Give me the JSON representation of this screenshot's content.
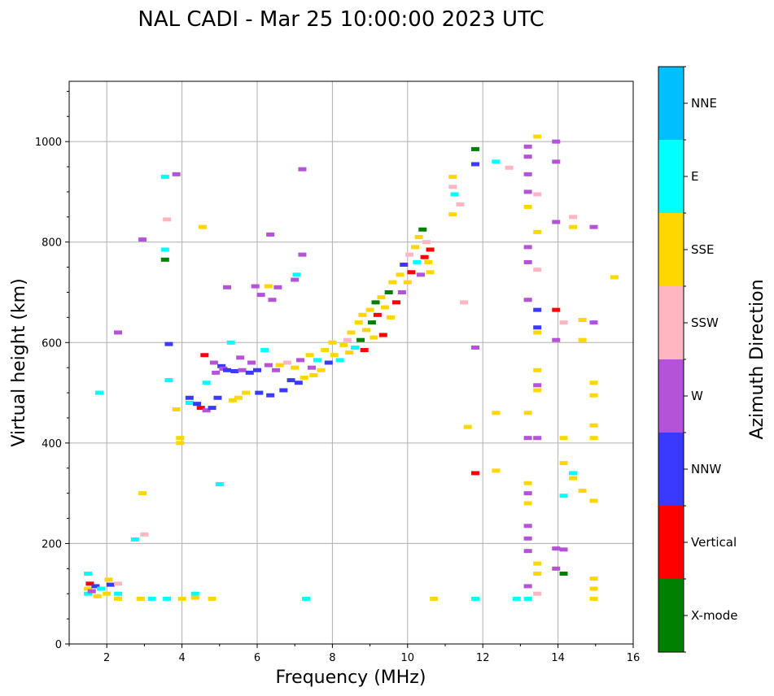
{
  "chart_data": {
    "type": "scatter",
    "title": "NAL CADI - Mar 25 10:00:00 2023 UTC",
    "xlabel": "Frequency (MHz)",
    "ylabel": "Virtual height (km)",
    "xlim": [
      1,
      16
    ],
    "ylim": [
      0,
      1120
    ],
    "xticks": [
      2,
      4,
      6,
      8,
      10,
      12,
      14,
      16
    ],
    "yticks": [
      0,
      200,
      400,
      600,
      800,
      1000
    ],
    "grid": true,
    "colorbar": {
      "title": "Azimuth Direction",
      "categories": [
        {
          "name": "X-mode",
          "color": "#008000"
        },
        {
          "name": "Vertical",
          "color": "#ff0000"
        },
        {
          "name": "NNW",
          "color": "#3a3aff"
        },
        {
          "name": "W",
          "color": "#b452d8"
        },
        {
          "name": "SSW",
          "color": "#ffb6c1"
        },
        {
          "name": "SSE",
          "color": "#ffd700"
        },
        {
          "name": "E",
          "color": "#00ffff"
        },
        {
          "name": "NNE",
          "color": "#00bfff"
        }
      ]
    },
    "points": [
      [
        1.5,
        100,
        "E"
      ],
      [
        1.5,
        110,
        "SSE"
      ],
      [
        1.55,
        120,
        "Vertical"
      ],
      [
        1.6,
        105,
        "W"
      ],
      [
        1.7,
        115,
        "NNW"
      ],
      [
        1.75,
        95,
        "SSE"
      ],
      [
        1.85,
        110,
        "E"
      ],
      [
        2.0,
        100,
        "SSE"
      ],
      [
        2.05,
        128,
        "SSE"
      ],
      [
        2.1,
        118,
        "NNW"
      ],
      [
        2.3,
        120,
        "SSW"
      ],
      [
        2.3,
        100,
        "E"
      ],
      [
        2.3,
        90,
        "SSE"
      ],
      [
        1.5,
        140,
        "E"
      ],
      [
        1.8,
        500,
        "E"
      ],
      [
        2.3,
        620,
        "W"
      ],
      [
        2.75,
        208,
        "E"
      ],
      [
        2.9,
        90,
        "SSE"
      ],
      [
        2.95,
        300,
        "SSE"
      ],
      [
        2.95,
        805,
        "W"
      ],
      [
        3.0,
        218,
        "SSW"
      ],
      [
        3.2,
        90,
        "E"
      ],
      [
        3.55,
        930,
        "E"
      ],
      [
        3.55,
        765,
        "X-mode"
      ],
      [
        3.55,
        785,
        "E"
      ],
      [
        3.6,
        845,
        "SSW"
      ],
      [
        3.6,
        90,
        "E"
      ],
      [
        3.65,
        525,
        "E"
      ],
      [
        3.65,
        597,
        "NNW"
      ],
      [
        3.85,
        935,
        "W"
      ],
      [
        3.85,
        467,
        "SSE"
      ],
      [
        3.95,
        410,
        "SSE"
      ],
      [
        3.95,
        400,
        "SSE"
      ],
      [
        4.0,
        90,
        "SSE"
      ],
      [
        4.2,
        490,
        "NNW"
      ],
      [
        4.2,
        480,
        "E"
      ],
      [
        4.35,
        100,
        "E"
      ],
      [
        4.35,
        92,
        "SSE"
      ],
      [
        4.4,
        478,
        "NNW"
      ],
      [
        4.5,
        470,
        "Vertical"
      ],
      [
        4.55,
        830,
        "SSE"
      ],
      [
        4.6,
        575,
        "Vertical"
      ],
      [
        4.65,
        520,
        "E"
      ],
      [
        4.65,
        465,
        "W"
      ],
      [
        4.8,
        90,
        "SSE"
      ],
      [
        4.8,
        470,
        "NNW"
      ],
      [
        4.85,
        560,
        "W"
      ],
      [
        4.9,
        540,
        "W"
      ],
      [
        4.95,
        490,
        "NNW"
      ],
      [
        5.0,
        318,
        "E"
      ],
      [
        5.05,
        553,
        "NNW"
      ],
      [
        5.1,
        548,
        "W"
      ],
      [
        5.2,
        710,
        "W"
      ],
      [
        5.2,
        545,
        "NNW"
      ],
      [
        5.3,
        600,
        "E"
      ],
      [
        5.35,
        485,
        "SSE"
      ],
      [
        5.4,
        543,
        "NNW"
      ],
      [
        5.5,
        490,
        "SSE"
      ],
      [
        5.55,
        570,
        "W"
      ],
      [
        5.6,
        545,
        "W"
      ],
      [
        5.7,
        500,
        "SSE"
      ],
      [
        5.8,
        540,
        "NNW"
      ],
      [
        5.85,
        560,
        "W"
      ],
      [
        5.95,
        712,
        "W"
      ],
      [
        6.0,
        545,
        "NNW"
      ],
      [
        6.05,
        500,
        "NNW"
      ],
      [
        6.1,
        695,
        "W"
      ],
      [
        6.2,
        585,
        "E"
      ],
      [
        6.3,
        712,
        "SSE"
      ],
      [
        6.3,
        555,
        "W"
      ],
      [
        6.35,
        815,
        "W"
      ],
      [
        6.35,
        495,
        "NNW"
      ],
      [
        6.4,
        685,
        "W"
      ],
      [
        6.5,
        545,
        "W"
      ],
      [
        6.55,
        710,
        "W"
      ],
      [
        6.6,
        555,
        "SSE"
      ],
      [
        6.7,
        505,
        "NNW"
      ],
      [
        6.8,
        560,
        "SSW"
      ],
      [
        6.9,
        525,
        "NNW"
      ],
      [
        7.0,
        725,
        "W"
      ],
      [
        7.0,
        550,
        "SSE"
      ],
      [
        7.05,
        735,
        "E"
      ],
      [
        7.1,
        520,
        "NNW"
      ],
      [
        7.15,
        565,
        "W"
      ],
      [
        7.2,
        775,
        "W"
      ],
      [
        7.2,
        945,
        "W"
      ],
      [
        7.25,
        530,
        "SSE"
      ],
      [
        7.3,
        90,
        "E"
      ],
      [
        7.4,
        575,
        "SSE"
      ],
      [
        7.45,
        550,
        "W"
      ],
      [
        7.5,
        535,
        "SSE"
      ],
      [
        7.6,
        565,
        "E"
      ],
      [
        7.7,
        545,
        "SSE"
      ],
      [
        7.8,
        585,
        "SSE"
      ],
      [
        7.9,
        560,
        "NNW"
      ],
      [
        8.0,
        600,
        "SSE"
      ],
      [
        8.05,
        575,
        "SSE"
      ],
      [
        8.2,
        565,
        "E"
      ],
      [
        8.3,
        595,
        "SSE"
      ],
      [
        8.4,
        605,
        "SSW"
      ],
      [
        8.45,
        580,
        "SSE"
      ],
      [
        8.5,
        620,
        "SSE"
      ],
      [
        8.6,
        590,
        "E"
      ],
      [
        8.7,
        640,
        "SSE"
      ],
      [
        8.75,
        605,
        "X-mode"
      ],
      [
        8.8,
        655,
        "SSE"
      ],
      [
        8.85,
        585,
        "Vertical"
      ],
      [
        8.9,
        625,
        "SSE"
      ],
      [
        9.0,
        665,
        "SSE"
      ],
      [
        9.05,
        640,
        "X-mode"
      ],
      [
        9.1,
        610,
        "SSE"
      ],
      [
        9.15,
        680,
        "X-mode"
      ],
      [
        9.2,
        655,
        "Vertical"
      ],
      [
        9.3,
        690,
        "SSE"
      ],
      [
        9.35,
        615,
        "Vertical"
      ],
      [
        9.4,
        670,
        "SSE"
      ],
      [
        9.5,
        700,
        "X-mode"
      ],
      [
        9.55,
        650,
        "SSE"
      ],
      [
        9.6,
        720,
        "SSE"
      ],
      [
        9.7,
        680,
        "Vertical"
      ],
      [
        9.8,
        735,
        "SSE"
      ],
      [
        9.85,
        700,
        "W"
      ],
      [
        9.9,
        755,
        "NNW"
      ],
      [
        10.0,
        720,
        "SSE"
      ],
      [
        10.05,
        775,
        "SSW"
      ],
      [
        10.1,
        740,
        "Vertical"
      ],
      [
        10.2,
        790,
        "SSE"
      ],
      [
        10.25,
        760,
        "E"
      ],
      [
        10.3,
        810,
        "SSE"
      ],
      [
        10.35,
        735,
        "W"
      ],
      [
        10.4,
        825,
        "X-mode"
      ],
      [
        10.45,
        770,
        "Vertical"
      ],
      [
        10.5,
        800,
        "SSW"
      ],
      [
        10.55,
        760,
        "SSE"
      ],
      [
        10.6,
        785,
        "Vertical"
      ],
      [
        10.6,
        740,
        "SSE"
      ],
      [
        10.7,
        90,
        "SSE"
      ],
      [
        11.2,
        930,
        "SSE"
      ],
      [
        11.2,
        910,
        "SSW"
      ],
      [
        11.2,
        855,
        "SSE"
      ],
      [
        11.25,
        895,
        "E"
      ],
      [
        11.4,
        875,
        "SSW"
      ],
      [
        11.5,
        680,
        "SSW"
      ],
      [
        11.6,
        432,
        "SSE"
      ],
      [
        11.8,
        985,
        "X-mode"
      ],
      [
        11.8,
        955,
        "NNW"
      ],
      [
        11.8,
        590,
        "W"
      ],
      [
        11.8,
        340,
        "Vertical"
      ],
      [
        11.8,
        90,
        "E"
      ],
      [
        12.35,
        960,
        "E"
      ],
      [
        12.35,
        460,
        "SSE"
      ],
      [
        12.35,
        345,
        "SSE"
      ],
      [
        12.7,
        948,
        "SSW"
      ],
      [
        12.9,
        90,
        "E"
      ],
      [
        13.2,
        990,
        "W"
      ],
      [
        13.2,
        970,
        "W"
      ],
      [
        13.2,
        935,
        "W"
      ],
      [
        13.2,
        900,
        "W"
      ],
      [
        13.2,
        870,
        "SSE"
      ],
      [
        13.2,
        790,
        "W"
      ],
      [
        13.2,
        760,
        "W"
      ],
      [
        13.2,
        685,
        "W"
      ],
      [
        13.2,
        460,
        "SSE"
      ],
      [
        13.2,
        410,
        "W"
      ],
      [
        13.2,
        320,
        "SSE"
      ],
      [
        13.2,
        300,
        "W"
      ],
      [
        13.2,
        280,
        "SSE"
      ],
      [
        13.2,
        235,
        "W"
      ],
      [
        13.2,
        210,
        "W"
      ],
      [
        13.2,
        185,
        "W"
      ],
      [
        13.2,
        115,
        "W"
      ],
      [
        13.2,
        90,
        "E"
      ],
      [
        13.45,
        1010,
        "SSE"
      ],
      [
        13.45,
        895,
        "SSW"
      ],
      [
        13.45,
        820,
        "SSE"
      ],
      [
        13.45,
        745,
        "SSW"
      ],
      [
        13.45,
        665,
        "NNW"
      ],
      [
        13.45,
        630,
        "NNW"
      ],
      [
        13.45,
        620,
        "SSE"
      ],
      [
        13.45,
        545,
        "SSE"
      ],
      [
        13.45,
        515,
        "W"
      ],
      [
        13.45,
        505,
        "SSE"
      ],
      [
        13.45,
        410,
        "W"
      ],
      [
        13.45,
        160,
        "SSE"
      ],
      [
        13.45,
        140,
        "SSE"
      ],
      [
        13.45,
        100,
        "SSW"
      ],
      [
        13.95,
        1000,
        "W"
      ],
      [
        13.95,
        960,
        "W"
      ],
      [
        13.95,
        840,
        "W"
      ],
      [
        13.95,
        665,
        "Vertical"
      ],
      [
        13.95,
        605,
        "W"
      ],
      [
        13.95,
        190,
        "W"
      ],
      [
        13.95,
        150,
        "W"
      ],
      [
        14.15,
        640,
        "SSW"
      ],
      [
        14.15,
        410,
        "SSE"
      ],
      [
        14.15,
        360,
        "SSE"
      ],
      [
        14.15,
        295,
        "E"
      ],
      [
        14.15,
        188,
        "W"
      ],
      [
        14.15,
        140,
        "X-mode"
      ],
      [
        14.4,
        850,
        "SSW"
      ],
      [
        14.4,
        830,
        "SSE"
      ],
      [
        14.4,
        340,
        "E"
      ],
      [
        14.4,
        330,
        "SSE"
      ],
      [
        14.65,
        645,
        "SSE"
      ],
      [
        14.65,
        605,
        "SSE"
      ],
      [
        14.65,
        305,
        "SSE"
      ],
      [
        14.95,
        830,
        "W"
      ],
      [
        14.95,
        640,
        "W"
      ],
      [
        14.95,
        520,
        "SSE"
      ],
      [
        14.95,
        495,
        "SSE"
      ],
      [
        14.95,
        435,
        "SSE"
      ],
      [
        14.95,
        410,
        "SSE"
      ],
      [
        14.95,
        285,
        "SSE"
      ],
      [
        14.95,
        130,
        "SSE"
      ],
      [
        14.95,
        110,
        "SSE"
      ],
      [
        14.95,
        90,
        "SSE"
      ],
      [
        15.5,
        730,
        "SSE"
      ]
    ]
  }
}
